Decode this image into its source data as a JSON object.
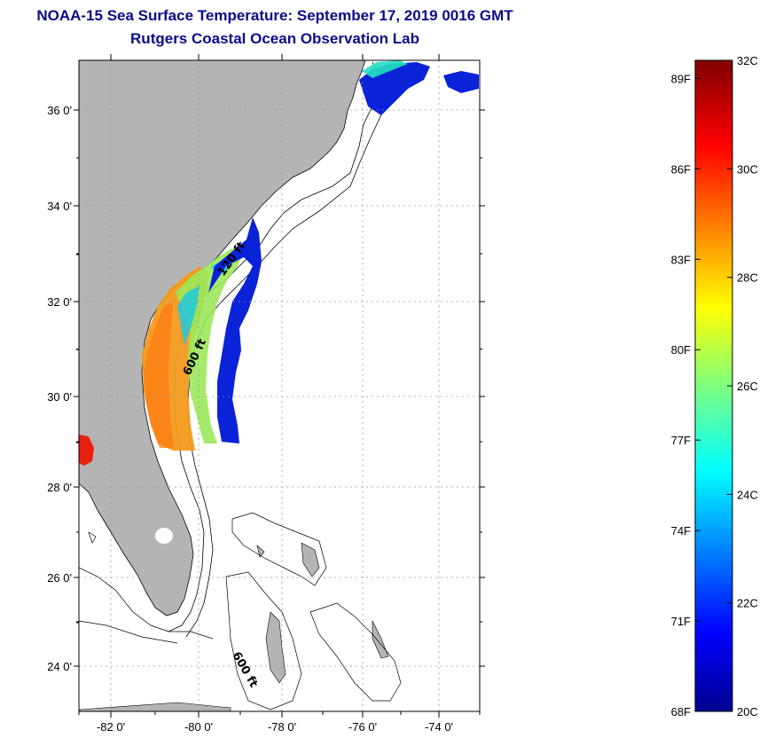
{
  "header": {
    "title": "NOAA-15 Sea Surface Temperature:  September 17, 2019 0016 GMT",
    "subtitle": "Rutgers Coastal Ocean Observation Lab"
  },
  "map": {
    "lat_labels": [
      "36 0'",
      "34 0'",
      "32 0'",
      "30 0'",
      "28 0'",
      "26 0'",
      "24 0'"
    ],
    "lon_labels": [
      "-82 0'",
      "-80 0'",
      "-78 0'",
      "-76 0'",
      "-74 0'"
    ],
    "contour_labels": [
      "120 ft",
      "600 ft",
      "600 ft"
    ],
    "colors": {
      "land": "#b4b4b4",
      "grid": "#999999",
      "title": "#0b0b8a"
    }
  },
  "colorbar": {
    "fahrenheit_labels": [
      "89F",
      "86F",
      "83F",
      "80F",
      "77F",
      "74F",
      "71F",
      "68F"
    ],
    "celsius_labels": [
      "32C",
      "30C",
      "28C",
      "26C",
      "24C",
      "22C",
      "20C"
    ],
    "min_c": 20,
    "max_c": 32,
    "colormap": "jet"
  }
}
